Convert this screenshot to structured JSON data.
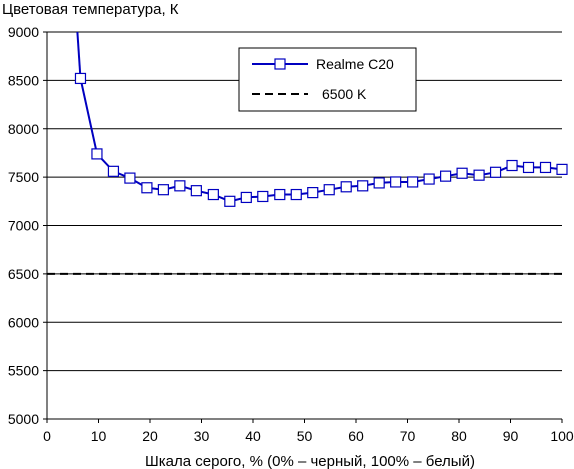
{
  "chart_data": {
    "type": "line",
    "title": "Цветовая температура, К",
    "xlabel": "Шкала серого, % (0% – черный, 100% – белый)",
    "ylabel": "",
    "xlim": [
      0,
      100
    ],
    "ylim": [
      5000,
      9000
    ],
    "x_ticks": [
      0,
      10,
      20,
      30,
      40,
      50,
      60,
      70,
      80,
      90,
      100
    ],
    "y_ticks": [
      5000,
      5500,
      6000,
      6500,
      7000,
      7500,
      8000,
      8500,
      9000
    ],
    "x_tick_labels": [
      "0",
      "10",
      "20",
      "30",
      "40",
      "50",
      "60",
      "70",
      "80",
      "90",
      "100"
    ],
    "y_tick_labels": [
      "5000",
      "5500",
      "6000",
      "6500",
      "7000",
      "7500",
      "8000",
      "8500",
      "9000"
    ],
    "grid": "horizontal",
    "legend_position": "top-right",
    "series": [
      {
        "name": "Realme C20",
        "color": "#0000c0",
        "marker": "open-square",
        "x": [
          6.5,
          9.7,
          12.9,
          16.1,
          19.4,
          22.6,
          25.8,
          29.0,
          32.3,
          35.5,
          38.7,
          41.9,
          45.2,
          48.4,
          51.6,
          54.8,
          58.1,
          61.3,
          64.5,
          67.7,
          71.0,
          74.2,
          77.4,
          80.6,
          83.9,
          87.1,
          90.3,
          93.5,
          96.8,
          100
        ],
        "y": [
          8520,
          7740,
          7560,
          7490,
          7390,
          7370,
          7410,
          7360,
          7320,
          7250,
          7290,
          7300,
          7320,
          7320,
          7340,
          7370,
          7400,
          7410,
          7440,
          7450,
          7450,
          7480,
          7510,
          7540,
          7520,
          7550,
          7620,
          7600,
          7600,
          7580
        ],
        "lead_in": {
          "x": [
            5.9,
            6.5
          ],
          "y": [
            9000,
            8520
          ]
        }
      },
      {
        "name": "6500 K",
        "color": "#000000",
        "style": "dashed",
        "x": [
          0,
          100
        ],
        "y": [
          6500,
          6500
        ]
      }
    ]
  }
}
